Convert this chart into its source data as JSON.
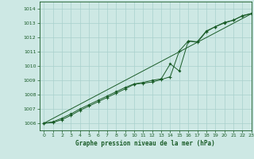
{
  "title": "Graphe pression niveau de la mer (hPa)",
  "background_color": "#cde8e4",
  "grid_color": "#a8d0cc",
  "line_color": "#1a5c28",
  "xlim": [
    -0.5,
    23
  ],
  "ylim": [
    1005.5,
    1014.5
  ],
  "yticks": [
    1006,
    1007,
    1008,
    1009,
    1010,
    1011,
    1012,
    1013,
    1014
  ],
  "xticks": [
    0,
    1,
    2,
    3,
    4,
    5,
    6,
    7,
    8,
    9,
    10,
    11,
    12,
    13,
    14,
    15,
    16,
    17,
    18,
    19,
    20,
    21,
    22,
    23
  ],
  "series1_x": [
    0,
    1,
    2,
    3,
    4,
    5,
    6,
    7,
    8,
    9,
    10,
    11,
    12,
    13,
    14,
    15,
    16,
    17,
    18,
    19,
    20,
    21,
    22,
    23
  ],
  "series1_y": [
    1006.0,
    1006.05,
    1006.25,
    1006.55,
    1006.9,
    1007.2,
    1007.5,
    1007.8,
    1008.1,
    1008.4,
    1008.72,
    1008.8,
    1008.88,
    1009.05,
    1009.25,
    1011.05,
    1011.75,
    1011.65,
    1012.4,
    1012.75,
    1013.05,
    1013.2,
    1013.5,
    1013.65
  ],
  "series2_x": [
    0,
    1,
    2,
    3,
    4,
    5,
    6,
    7,
    8,
    9,
    10,
    11,
    12,
    13,
    14,
    15,
    16,
    17,
    18,
    19,
    20,
    21,
    22,
    23
  ],
  "series2_y": [
    1006.0,
    1006.1,
    1006.35,
    1006.65,
    1007.0,
    1007.3,
    1007.6,
    1007.9,
    1008.2,
    1008.5,
    1008.75,
    1008.85,
    1009.0,
    1009.1,
    1010.15,
    1009.65,
    1011.75,
    1011.7,
    1012.45,
    1012.75,
    1013.0,
    1013.2,
    1013.52,
    1013.68
  ],
  "series3_x": [
    0,
    23
  ],
  "series3_y": [
    1006.0,
    1013.65
  ]
}
